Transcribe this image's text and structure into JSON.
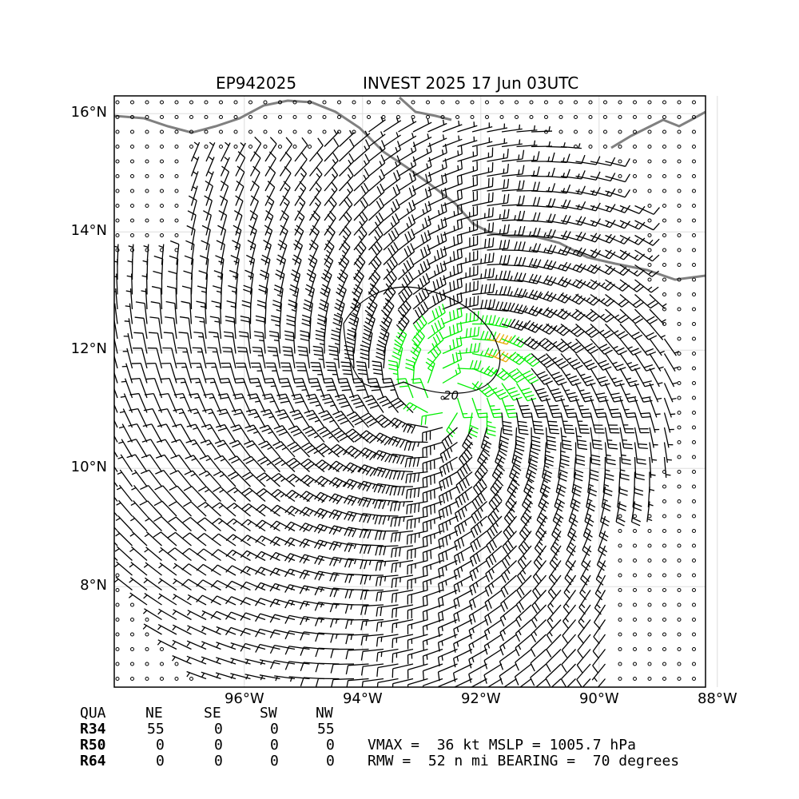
{
  "title": {
    "storm_id": "EP942025",
    "description": "INVEST 2025 17 Jun 03UTC"
  },
  "map": {
    "lon_range": [
      -98.2,
      -88.2
    ],
    "lat_range": [
      6.3,
      16.3
    ],
    "lat_ticks": [
      {
        "value": 16,
        "label": "16°N"
      },
      {
        "value": 14,
        "label": "14°N"
      },
      {
        "value": 12,
        "label": "12°N"
      },
      {
        "value": 10,
        "label": "10°N"
      },
      {
        "value": 8,
        "label": "8°N"
      }
    ],
    "lon_ticks": [
      {
        "value": -96,
        "label": "96°W"
      },
      {
        "value": -94,
        "label": "94°W"
      },
      {
        "value": -92,
        "label": "92°W"
      },
      {
        "value": -90,
        "label": "90°W"
      },
      {
        "value": -88,
        "label": "88°W"
      }
    ],
    "grid": true,
    "coastline_color": "#808080",
    "barb_colors": {
      "default": "#000000",
      "gale": "#00ee00",
      "storm": "#e6a700"
    },
    "contour_label": "20",
    "center": {
      "lon": -92.6,
      "lat": 11.2
    }
  },
  "radii_table": {
    "header": [
      "QUA",
      "NE",
      "SE",
      "SW",
      "NW"
    ],
    "rows": [
      {
        "label": "R34",
        "values": [
          "55",
          "0",
          "0",
          "55"
        ]
      },
      {
        "label": "R50",
        "values": [
          "0",
          "0",
          "0",
          "0"
        ]
      },
      {
        "label": "R64",
        "values": [
          "0",
          "0",
          "0",
          "0"
        ]
      }
    ]
  },
  "summary": {
    "line1": "VMAX =  36 kt MSLP = 1005.7 hPa",
    "line2": "RMW =  52 n mi BEARING =  70 degrees"
  }
}
